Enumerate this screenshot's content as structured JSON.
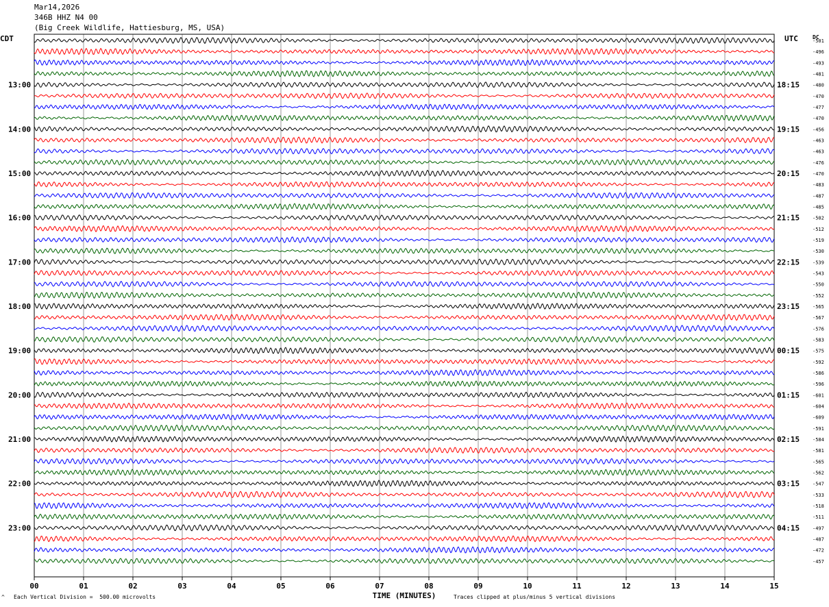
{
  "header": {
    "date": "Mar14,2026",
    "station": "346B HHZ N4 00",
    "location": "(Big Creek Wildlife, Hattiesburg, MS, USA)"
  },
  "left_tz": "CDT",
  "right_tz": "UTC",
  "dc_label": "DC",
  "footer": {
    "scale": "Each Vertical Division =  500.00 microvolts",
    "clip": "Traces clipped at plus/minus 5 vertical divisions",
    "marker": "^"
  },
  "chart_data": {
    "type": "line",
    "title": "",
    "xlabel": "TIME (MINUTES)",
    "xlim": [
      0,
      15
    ],
    "x_ticks": [
      "00",
      "01",
      "02",
      "03",
      "04",
      "05",
      "06",
      "07",
      "08",
      "09",
      "10",
      "11",
      "12",
      "13",
      "14",
      "15"
    ],
    "grid": true,
    "series_colors": [
      "#000000",
      "#ff0000",
      "#0000ff",
      "#006400"
    ],
    "rows_per_hour": 4,
    "start_row_label_index": 0,
    "left_hour_labels": [
      "13:00",
      "14:00",
      "15:00",
      "16:00",
      "17:00",
      "18:00",
      "19:00",
      "20:00",
      "21:00",
      "22:00",
      "23:00"
    ],
    "right_hour_labels": [
      "18:15",
      "19:15",
      "20:15",
      "21:15",
      "22:15",
      "23:15",
      "00:15",
      "01:15",
      "02:15",
      "03:15",
      "04:15"
    ],
    "dc_offsets": [
      -501,
      -496,
      -493,
      -481,
      -480,
      -470,
      -477,
      -470,
      -456,
      -463,
      -463,
      -476,
      -470,
      -483,
      -487,
      -485,
      -502,
      -512,
      -519,
      -530,
      -539,
      -543,
      -550,
      -552,
      -565,
      -567,
      -576,
      -583,
      -575,
      -592,
      -586,
      -596,
      -601,
      -604,
      -609,
      -591,
      -584,
      -581,
      -565,
      -562,
      -547,
      -533,
      -518,
      -511,
      -497,
      -487,
      -472,
      -457
    ]
  }
}
